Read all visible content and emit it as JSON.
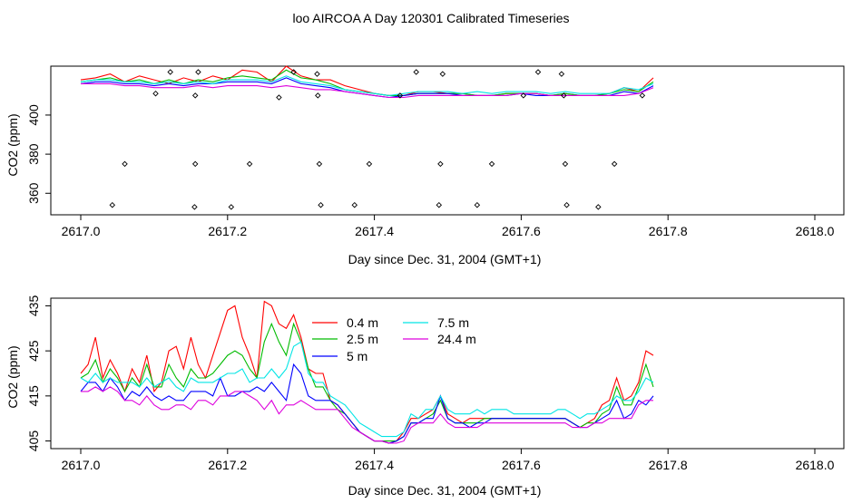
{
  "title": "loo AIRCOA A  Day 120301  Calibrated Timeseries",
  "colors": {
    "0.4 m": "#ff0000",
    "2.5 m": "#00bb00",
    "5 m": "#0000ff",
    "7.5 m": "#00e5e5",
    "24.4 m": "#dd00dd"
  },
  "chart_data": [
    {
      "type": "line",
      "title": "loo AIRCOA A  Day 120301  Calibrated Timeseries",
      "xlabel": "Day since Dec. 31, 2004 (GMT+1)",
      "ylabel": "CO2 (ppm)",
      "xlim": [
        2617.0,
        2618.0
      ],
      "ylim": [
        349,
        425
      ],
      "x_ticks": [
        "2617.0",
        "2617.2",
        "2617.4",
        "2617.6",
        "2617.8",
        "2618.0"
      ],
      "y_ticks": [
        "360",
        "380",
        "400"
      ],
      "y_tick_values": [
        360,
        380,
        400
      ],
      "grid": false,
      "legend": "none",
      "x": [
        2617.0,
        2617.02,
        2617.04,
        2617.06,
        2617.08,
        2617.1,
        2617.12,
        2617.14,
        2617.16,
        2617.18,
        2617.2,
        2617.22,
        2617.24,
        2617.26,
        2617.28,
        2617.3,
        2617.32,
        2617.34,
        2617.36,
        2617.38,
        2617.4,
        2617.42,
        2617.44,
        2617.46,
        2617.48,
        2617.5,
        2617.52,
        2617.54,
        2617.56,
        2617.58,
        2617.6,
        2617.62,
        2617.64,
        2617.66,
        2617.68,
        2617.7,
        2617.72,
        2617.74,
        2617.76,
        2617.78
      ],
      "series": [
        {
          "name": "0.4 m",
          "values": [
            418,
            419,
            421,
            417,
            420,
            418,
            416,
            419,
            417,
            420,
            418,
            423,
            422,
            417,
            425,
            420,
            418,
            418,
            415,
            413,
            411,
            410,
            410,
            412,
            412,
            411,
            411,
            410,
            410,
            411,
            411,
            411,
            410,
            411,
            410,
            410,
            411,
            414,
            412,
            419
          ]
        },
        {
          "name": "2.5 m",
          "values": [
            417,
            418,
            419,
            417,
            418,
            416,
            418,
            416,
            418,
            417,
            419,
            420,
            419,
            418,
            423,
            419,
            418,
            416,
            413,
            412,
            411,
            410,
            410,
            411,
            411,
            411,
            411,
            410,
            410,
            411,
            411,
            411,
            410,
            411,
            410,
            410,
            411,
            413,
            412,
            417
          ]
        },
        {
          "name": "5 m",
          "values": [
            416,
            417,
            417,
            416,
            416,
            415,
            416,
            415,
            416,
            416,
            417,
            417,
            417,
            416,
            419,
            416,
            415,
            414,
            412,
            411,
            410,
            409,
            410,
            411,
            411,
            411,
            410,
            410,
            410,
            410,
            411,
            410,
            410,
            410,
            410,
            410,
            410,
            412,
            411,
            415
          ]
        },
        {
          "name": "7.5 m",
          "values": [
            417,
            418,
            418,
            417,
            417,
            416,
            417,
            416,
            417,
            416,
            418,
            418,
            418,
            417,
            420,
            417,
            416,
            415,
            413,
            412,
            411,
            410,
            411,
            412,
            412,
            412,
            411,
            412,
            411,
            412,
            412,
            412,
            411,
            412,
            411,
            411,
            411,
            414,
            413,
            416
          ]
        },
        {
          "name": "24.4 m",
          "values": [
            416,
            416,
            416,
            415,
            415,
            414,
            414,
            414,
            415,
            414,
            415,
            415,
            415,
            414,
            415,
            414,
            413,
            413,
            412,
            411,
            410,
            409,
            409,
            410,
            410,
            410,
            410,
            410,
            410,
            410,
            411,
            411,
            410,
            410,
            410,
            410,
            410,
            410,
            411,
            414
          ]
        }
      ],
      "points": [
        {
          "x": 2617.043,
          "y": 354
        },
        {
          "x": 2617.06,
          "y": 375
        },
        {
          "x": 2617.102,
          "y": 411
        },
        {
          "x": 2617.122,
          "y": 422
        },
        {
          "x": 2617.155,
          "y": 353
        },
        {
          "x": 2617.156,
          "y": 375
        },
        {
          "x": 2617.156,
          "y": 410
        },
        {
          "x": 2617.16,
          "y": 422
        },
        {
          "x": 2617.205,
          "y": 353
        },
        {
          "x": 2617.23,
          "y": 375
        },
        {
          "x": 2617.27,
          "y": 409
        },
        {
          "x": 2617.29,
          "y": 422
        },
        {
          "x": 2617.322,
          "y": 421
        },
        {
          "x": 2617.323,
          "y": 410
        },
        {
          "x": 2617.325,
          "y": 375
        },
        {
          "x": 2617.327,
          "y": 354
        },
        {
          "x": 2617.373,
          "y": 354
        },
        {
          "x": 2617.393,
          "y": 375
        },
        {
          "x": 2617.435,
          "y": 410
        },
        {
          "x": 2617.457,
          "y": 422
        },
        {
          "x": 2617.488,
          "y": 354
        },
        {
          "x": 2617.49,
          "y": 375
        },
        {
          "x": 2617.493,
          "y": 421
        },
        {
          "x": 2617.54,
          "y": 354
        },
        {
          "x": 2617.56,
          "y": 375
        },
        {
          "x": 2617.603,
          "y": 410
        },
        {
          "x": 2617.623,
          "y": 422
        },
        {
          "x": 2617.655,
          "y": 421
        },
        {
          "x": 2617.658,
          "y": 410
        },
        {
          "x": 2617.66,
          "y": 375
        },
        {
          "x": 2617.662,
          "y": 354
        },
        {
          "x": 2617.705,
          "y": 353
        },
        {
          "x": 2617.727,
          "y": 375
        },
        {
          "x": 2617.765,
          "y": 410
        }
      ]
    },
    {
      "type": "line",
      "xlabel": "Day since Dec. 31, 2004 (GMT+1)",
      "ylabel": "CO2 (ppm)",
      "xlim": [
        2617.0,
        2618.0
      ],
      "ylim": [
        403.3,
        436.7
      ],
      "x_ticks": [
        "2617.0",
        "2617.2",
        "2617.4",
        "2617.6",
        "2617.8",
        "2618.0"
      ],
      "y_ticks": [
        "405",
        "415",
        "425",
        "435"
      ],
      "y_tick_values": [
        405,
        415,
        425,
        435
      ],
      "grid": false,
      "legend": "top-center",
      "legend_entries": [
        "0.4 m",
        "2.5 m",
        "5 m",
        "7.5 m",
        "24.4 m"
      ],
      "x": [
        2617.0,
        2617.01,
        2617.02,
        2617.03,
        2617.04,
        2617.05,
        2617.06,
        2617.07,
        2617.08,
        2617.09,
        2617.1,
        2617.11,
        2617.12,
        2617.13,
        2617.14,
        2617.15,
        2617.16,
        2617.17,
        2617.18,
        2617.19,
        2617.2,
        2617.21,
        2617.22,
        2617.23,
        2617.24,
        2617.25,
        2617.26,
        2617.27,
        2617.28,
        2617.29,
        2617.3,
        2617.31,
        2617.32,
        2617.33,
        2617.34,
        2617.35,
        2617.36,
        2617.37,
        2617.38,
        2617.39,
        2617.4,
        2617.41,
        2617.42,
        2617.43,
        2617.44,
        2617.45,
        2617.46,
        2617.47,
        2617.48,
        2617.49,
        2617.5,
        2617.51,
        2617.52,
        2617.53,
        2617.54,
        2617.55,
        2617.56,
        2617.57,
        2617.58,
        2617.59,
        2617.6,
        2617.61,
        2617.62,
        2617.63,
        2617.64,
        2617.65,
        2617.66,
        2617.67,
        2617.68,
        2617.69,
        2617.7,
        2617.71,
        2617.72,
        2617.73,
        2617.74,
        2617.75,
        2617.76,
        2617.77,
        2617.78
      ],
      "series": [
        {
          "name": "0.4 m",
          "values": [
            420,
            422,
            428,
            419,
            423,
            420,
            416,
            421,
            418,
            424,
            416,
            418,
            425,
            426,
            421,
            428,
            422,
            419,
            424,
            429,
            434,
            435,
            428,
            424,
            419,
            436,
            435,
            431,
            430,
            433,
            428,
            421,
            420,
            420,
            414,
            413,
            411,
            409,
            407,
            406,
            405,
            405,
            404.5,
            405,
            407,
            410,
            410,
            411,
            412,
            415,
            411,
            410,
            409,
            410,
            410,
            410,
            410,
            410,
            410,
            410,
            410,
            410,
            410,
            410,
            410,
            410,
            410,
            409,
            408,
            409,
            410,
            413,
            414,
            419,
            414,
            415,
            418,
            425,
            424
          ]
        },
        {
          "name": "2.5 m",
          "values": [
            419,
            420,
            423,
            418,
            421,
            419,
            416,
            419,
            417,
            422,
            417,
            417,
            422,
            419,
            417,
            421,
            419,
            419,
            420,
            422,
            424,
            425,
            424,
            421,
            419,
            427,
            431,
            427,
            424,
            431,
            427,
            421,
            417,
            417,
            414,
            412,
            411,
            409,
            407,
            406,
            405,
            405,
            405,
            405,
            406,
            409,
            409,
            410,
            411,
            414,
            410,
            409,
            409,
            409,
            409,
            410,
            410,
            410,
            410,
            410,
            410,
            410,
            410,
            410,
            410,
            410,
            410,
            409,
            408,
            409,
            409,
            411,
            412,
            417,
            413,
            413,
            417,
            422,
            417
          ]
        },
        {
          "name": "5 m",
          "values": [
            416,
            418,
            418,
            416,
            419,
            417,
            414,
            416,
            415,
            417,
            415,
            414,
            415,
            414,
            414,
            416,
            416,
            416,
            415,
            419,
            415,
            415,
            416,
            416,
            417,
            416,
            418,
            416,
            414,
            422,
            420,
            415,
            414,
            414,
            414,
            413,
            411,
            409,
            407,
            406,
            405,
            405,
            404.5,
            405,
            406,
            409,
            409,
            410,
            410,
            415,
            410,
            409,
            409,
            408,
            409,
            409,
            410,
            410,
            410,
            410,
            410,
            410,
            410,
            410,
            410,
            410,
            410,
            409,
            408,
            408,
            409,
            410,
            411,
            414,
            410,
            411,
            414,
            413,
            415
          ]
        },
        {
          "name": "7.5 m",
          "values": [
            419,
            418,
            420,
            418,
            419,
            418,
            418,
            418,
            417,
            419,
            417,
            418,
            419,
            417,
            416,
            419,
            418,
            418,
            418,
            419,
            420,
            420,
            421,
            418,
            419,
            419,
            421,
            419,
            421,
            426,
            427,
            420,
            418,
            418,
            415,
            414,
            413,
            411,
            409,
            408,
            407,
            406,
            406,
            406,
            407,
            411,
            410,
            412,
            412,
            415,
            412,
            411,
            411,
            411,
            412,
            411,
            412,
            412,
            412,
            411,
            411,
            411,
            411,
            411,
            411,
            412,
            412,
            411,
            410,
            411,
            411,
            412,
            413,
            415,
            414,
            414,
            416,
            419,
            418
          ]
        },
        {
          "name": "24.4 m",
          "values": [
            416,
            416,
            417,
            416,
            417,
            416,
            414,
            414,
            413,
            415,
            413,
            412,
            412,
            413,
            413,
            412,
            414,
            414,
            413,
            415,
            415,
            416,
            416,
            415,
            414,
            412,
            414,
            411,
            413,
            413,
            414,
            413,
            412,
            412,
            412,
            412,
            410,
            408,
            407,
            406,
            405,
            405,
            404.5,
            404.5,
            405,
            408,
            409,
            409,
            409,
            411,
            409,
            408,
            408,
            408,
            408,
            409,
            409,
            409,
            409,
            409,
            409,
            409,
            409,
            409,
            409,
            409,
            409,
            408,
            408,
            408,
            409,
            409,
            410,
            410,
            410,
            410,
            413,
            414,
            414
          ]
        }
      ]
    }
  ]
}
